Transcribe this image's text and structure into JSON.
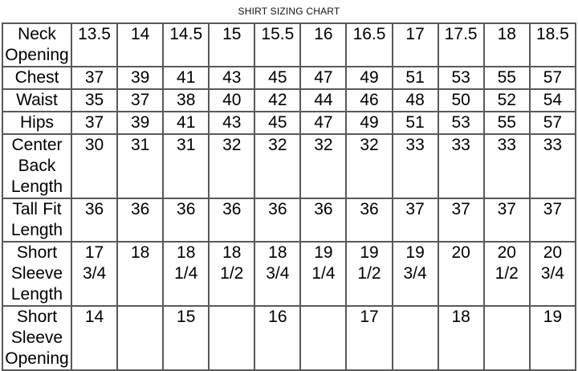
{
  "title": "SHIRT SIZING CHART",
  "table": {
    "rows": [
      {
        "label": "Neck Opening",
        "values": [
          "13.5",
          "14",
          "14.5",
          "15",
          "15.5",
          "16",
          "16.5",
          "17",
          "17.5",
          "18",
          "18.5"
        ]
      },
      {
        "label": "Chest",
        "values": [
          "37",
          "39",
          "41",
          "43",
          "45",
          "47",
          "49",
          "51",
          "53",
          "55",
          "57"
        ]
      },
      {
        "label": "Waist",
        "values": [
          "35",
          "37",
          "38",
          "40",
          "42",
          "44",
          "46",
          "48",
          "50",
          "52",
          "54"
        ]
      },
      {
        "label": "Hips",
        "values": [
          "37",
          "39",
          "41",
          "43",
          "45",
          "47",
          "49",
          "51",
          "53",
          "55",
          "57"
        ]
      },
      {
        "label": "Center Back Length",
        "values": [
          "30",
          "31",
          "31",
          "32",
          "32",
          "32",
          "32",
          "33",
          "33",
          "33",
          "33"
        ]
      },
      {
        "label": "Tall Fit Length",
        "values": [
          "36",
          "36",
          "36",
          "36",
          "36",
          "36",
          "36",
          "37",
          "37",
          "37",
          "37"
        ]
      },
      {
        "label": "Short Sleeve Length",
        "values": [
          "17 3/4",
          "18",
          "18 1/4",
          "18 1/2",
          "18 3/4",
          "19 1/4",
          "19 1/2",
          "19 3/4",
          "20",
          "20 1/2",
          "20 3/4"
        ]
      },
      {
        "label": "Short Sleeve Opening",
        "values": [
          "14",
          "",
          "15",
          "",
          "16",
          "",
          "17",
          "",
          "18",
          "",
          "19"
        ]
      }
    ]
  }
}
